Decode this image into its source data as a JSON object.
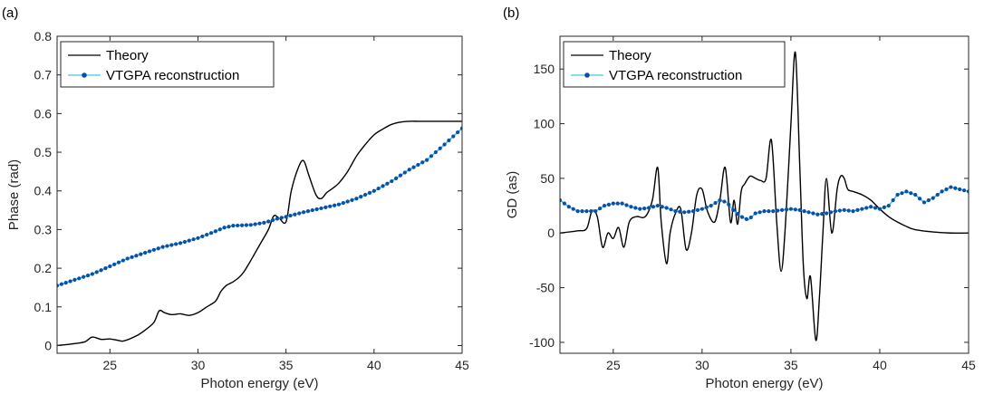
{
  "chart_data": [
    {
      "type": "line",
      "panel_label": "(a)",
      "xlabel": "Photon energy (eV)",
      "ylabel": "Phase (rad)",
      "xlim": [
        22,
        45
      ],
      "ylim": [
        -0.02,
        0.8
      ],
      "xticks": [
        25,
        30,
        35,
        40,
        45
      ],
      "yticks": [
        0,
        0.1,
        0.2,
        0.3,
        0.4,
        0.5,
        0.6,
        0.7,
        0.8
      ],
      "grid": false,
      "legend_position": "top-left",
      "series": [
        {
          "name": "Theory",
          "color": "#000000",
          "style": "solid",
          "x": [
            22,
            23,
            23.6,
            24,
            24.5,
            25,
            25.5,
            25.8,
            26.5,
            27,
            27.5,
            27.8,
            28.1,
            28.5,
            29,
            29.5,
            30,
            30.5,
            31,
            31.3,
            31.6,
            31.8,
            32,
            32.3,
            32.6,
            33,
            33.5,
            34,
            34.3,
            34.6,
            35,
            35.3,
            35.7,
            36,
            36.3,
            36.7,
            37,
            37.3,
            37.6,
            38,
            38.5,
            39,
            39.5,
            40,
            40.5,
            41,
            41.5,
            42,
            42.5,
            43,
            44,
            45
          ],
          "y": [
            0.0,
            0.005,
            0.01,
            0.022,
            0.016,
            0.017,
            0.013,
            0.012,
            0.025,
            0.04,
            0.06,
            0.09,
            0.085,
            0.08,
            0.082,
            0.078,
            0.085,
            0.1,
            0.115,
            0.14,
            0.155,
            0.16,
            0.165,
            0.175,
            0.19,
            0.22,
            0.26,
            0.3,
            0.335,
            0.33,
            0.32,
            0.4,
            0.46,
            0.478,
            0.44,
            0.39,
            0.38,
            0.395,
            0.405,
            0.42,
            0.45,
            0.49,
            0.52,
            0.545,
            0.56,
            0.572,
            0.578,
            0.58,
            0.58,
            0.58,
            0.58,
            0.58
          ]
        },
        {
          "name": "VTGPA reconstruction",
          "color": "#3ec6e8",
          "marker_color": "#0b4fa8",
          "style": "solid-dots",
          "x": [
            22,
            23,
            24,
            25,
            26,
            27,
            28,
            29,
            30,
            30.8,
            31.5,
            32,
            33,
            33.8,
            34.5,
            35,
            36,
            37,
            38,
            39,
            40,
            41,
            42,
            43,
            44,
            45
          ],
          "y": [
            0.155,
            0.17,
            0.185,
            0.205,
            0.225,
            0.24,
            0.255,
            0.265,
            0.278,
            0.292,
            0.305,
            0.31,
            0.312,
            0.318,
            0.328,
            0.333,
            0.345,
            0.355,
            0.365,
            0.38,
            0.4,
            0.425,
            0.455,
            0.48,
            0.52,
            0.562
          ]
        }
      ]
    },
    {
      "type": "line",
      "panel_label": "(b)",
      "xlabel": "Photon energy (eV)",
      "ylabel": "GD (as)",
      "xlim": [
        22,
        45
      ],
      "ylim": [
        -110,
        180
      ],
      "xticks": [
        25,
        30,
        35,
        40,
        45
      ],
      "yticks": [
        -100,
        -50,
        0,
        50,
        100,
        150
      ],
      "grid": false,
      "legend_position": "top-left",
      "series": [
        {
          "name": "Theory",
          "color": "#000000",
          "style": "solid",
          "x": [
            22,
            23,
            23.5,
            23.8,
            24.1,
            24.4,
            24.7,
            25,
            25.3,
            25.6,
            25.9,
            26.3,
            26.8,
            27.2,
            27.5,
            27.7,
            28,
            28.2,
            28.5,
            28.8,
            29.1,
            29.4,
            29.7,
            30,
            30.3,
            30.7,
            31,
            31.3,
            31.6,
            31.8,
            32,
            32.2,
            32.4,
            32.7,
            33,
            33.3,
            33.6,
            33.9,
            34.2,
            34.45,
            34.7,
            35,
            35.25,
            35.5,
            35.7,
            35.9,
            36.1,
            36.4,
            36.6,
            36.8,
            37,
            37.3,
            37.6,
            37.8,
            38,
            38.2,
            38.5,
            39,
            39.5,
            40,
            40.5,
            41,
            41.5,
            42,
            43,
            44,
            45
          ],
          "y": [
            0,
            2,
            4,
            20,
            15,
            -13,
            0,
            -5,
            5,
            -13,
            10,
            15,
            15,
            30,
            60,
            10,
            -28,
            0,
            18,
            22,
            -15,
            0,
            35,
            40,
            20,
            10,
            30,
            60,
            10,
            30,
            8,
            38,
            45,
            52,
            50,
            48,
            50,
            85,
            10,
            -35,
            10,
            100,
            165,
            60,
            -30,
            -60,
            -40,
            -98,
            -60,
            0,
            50,
            0,
            40,
            52,
            50,
            40,
            38,
            35,
            30,
            22,
            15,
            10,
            6,
            3,
            1,
            0,
            0
          ]
        },
        {
          "name": "VTGPA reconstruction",
          "color": "#3ec6e8",
          "marker_color": "#0b4fa8",
          "style": "solid-dots",
          "x": [
            22,
            22.5,
            23,
            23.5,
            24,
            24.5,
            25,
            25.5,
            26,
            26.5,
            27,
            27.5,
            28,
            28.5,
            29,
            29.5,
            30,
            30.5,
            31,
            31.4,
            31.8,
            32.2,
            32.6,
            33,
            33.5,
            34,
            34.5,
            35,
            35.5,
            36,
            36.5,
            37,
            37.5,
            38,
            38.5,
            39,
            39.5,
            40,
            40.5,
            41,
            41.5,
            42,
            42.5,
            43,
            43.5,
            44,
            44.5,
            45
          ],
          "y": [
            30,
            24,
            20,
            20,
            20,
            25,
            27,
            27,
            24,
            22,
            23,
            25,
            23,
            20,
            19,
            20,
            22,
            25,
            30,
            28,
            20,
            15,
            12,
            18,
            20,
            20,
            21,
            22,
            21,
            19,
            17,
            18,
            20,
            21,
            20,
            22,
            24,
            22,
            25,
            35,
            38,
            35,
            28,
            32,
            38,
            42,
            40,
            38
          ]
        }
      ]
    }
  ]
}
